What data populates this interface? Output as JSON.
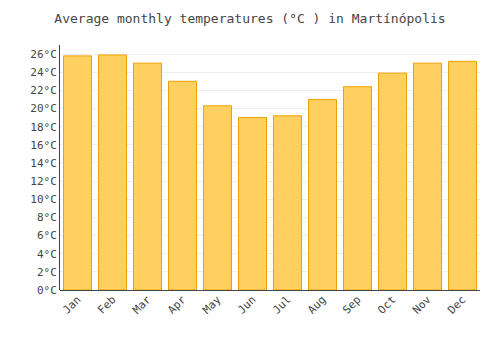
{
  "chart_data": {
    "type": "bar",
    "title": "Average monthly temperatures (°C ) in Martínópolis",
    "categories": [
      "Jan",
      "Feb",
      "Mar",
      "Apr",
      "May",
      "Jun",
      "Jul",
      "Aug",
      "Sep",
      "Oct",
      "Nov",
      "Dec"
    ],
    "values": [
      25.8,
      25.9,
      25.0,
      23.0,
      20.3,
      19.0,
      19.2,
      21.0,
      22.4,
      23.9,
      25.0,
      25.2
    ],
    "color": "#FFD060",
    "ylim": [
      0,
      27
    ],
    "yticks": [
      {
        "value": 0,
        "label": "0°C"
      },
      {
        "value": 2,
        "label": "2°C"
      },
      {
        "value": 4,
        "label": "4°C"
      },
      {
        "value": 6,
        "label": "6°C"
      },
      {
        "value": 8,
        "label": "8°C"
      },
      {
        "value": 10,
        "label": "10°C"
      },
      {
        "value": 12,
        "label": "12°C"
      },
      {
        "value": 14,
        "label": "14°C"
      },
      {
        "value": 16,
        "label": "16°C"
      },
      {
        "value": 18,
        "label": "18°C"
      },
      {
        "value": 20,
        "label": "20°C"
      },
      {
        "value": 22,
        "label": "22°C"
      },
      {
        "value": 24,
        "label": "24°C"
      },
      {
        "value": 26,
        "label": "26°C"
      }
    ],
    "grid": true
  }
}
